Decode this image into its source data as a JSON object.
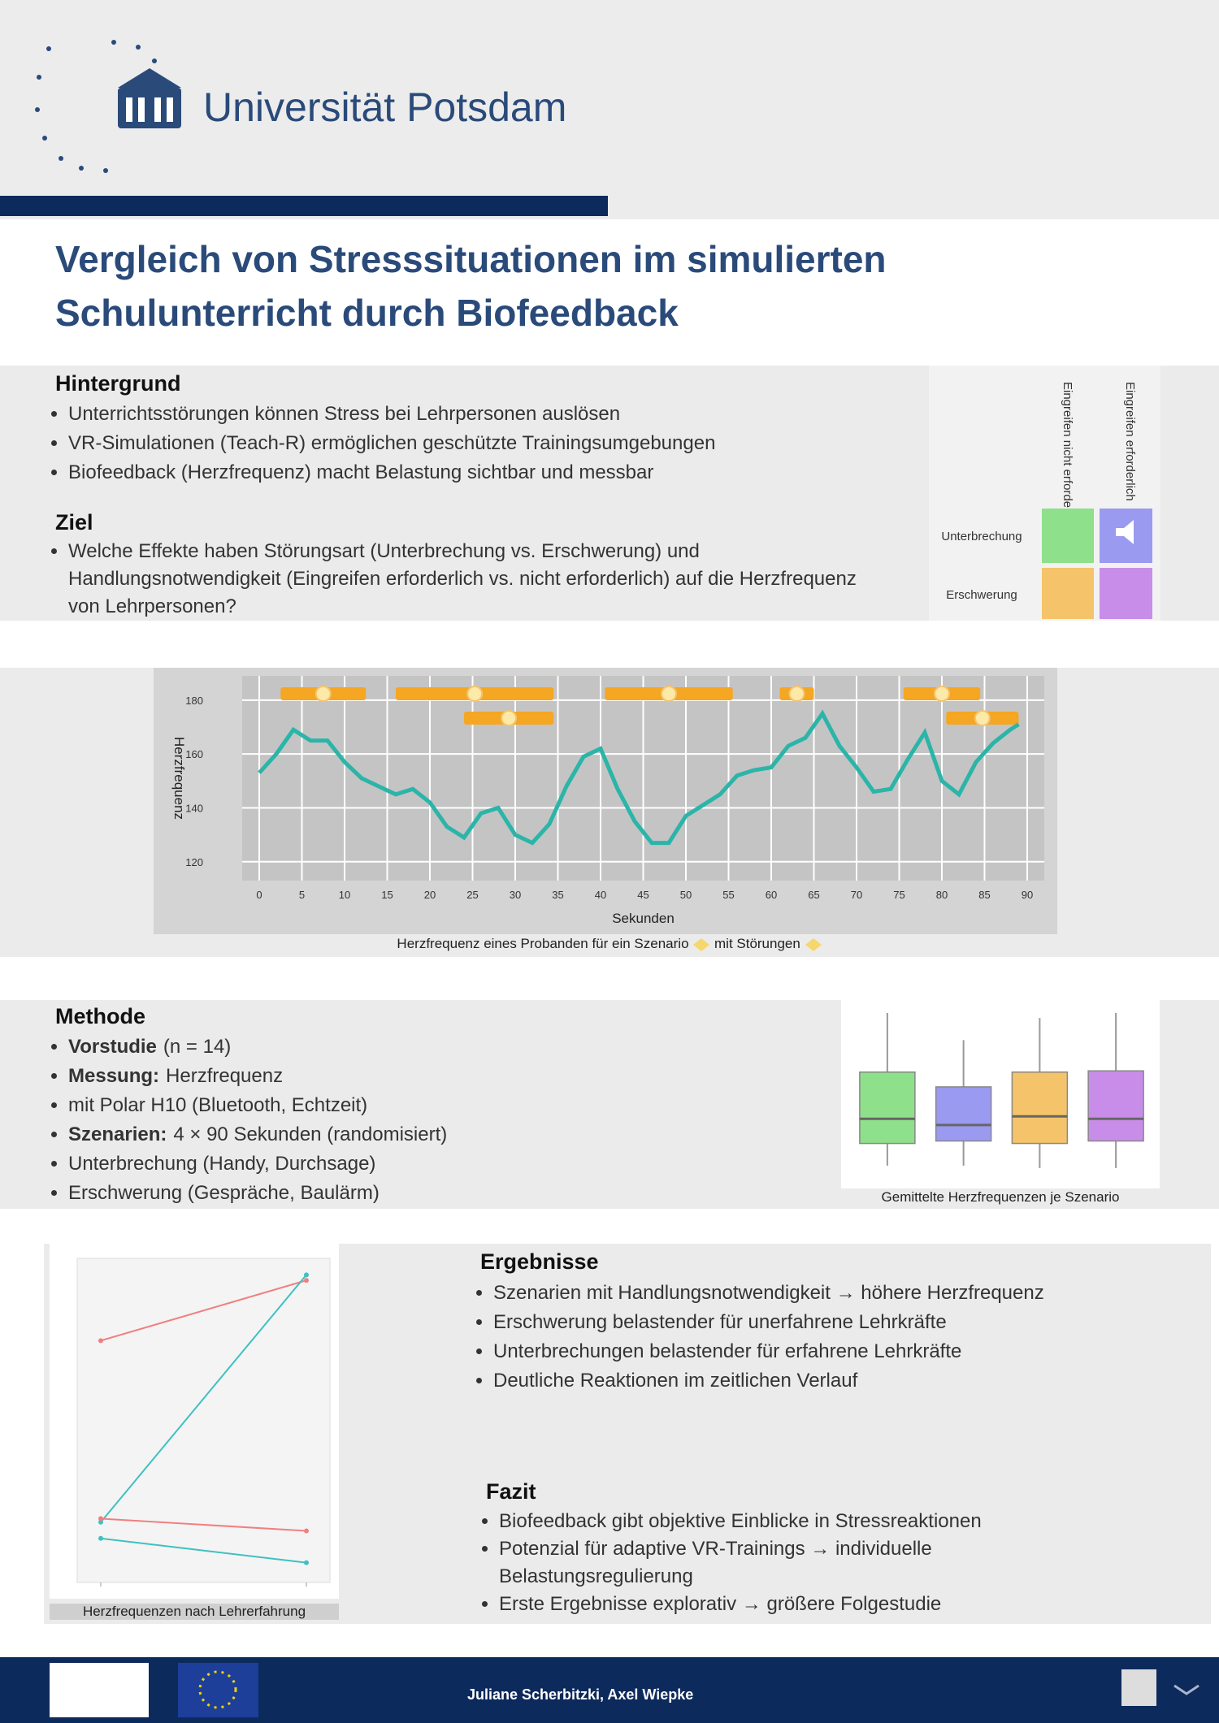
{
  "header": {
    "university": "Universität Potsdam"
  },
  "title": [
    "Vergleich von Stresssituationen im simulierten",
    "Schulunterricht durch Biofeedback"
  ],
  "background": {
    "heading": "Hintergrund",
    "bullets": [
      "Unterrichtsstörungen können Stress bei Lehrpersonen auslösen",
      "VR-Simulationen (Teach-R) ermöglichen geschützte Trainingsumgebungen",
      "Biofeedback (Herzfrequenz) macht Belastung sichtbar und messbar"
    ]
  },
  "aim": {
    "heading": "Ziel",
    "bullets": [
      "Welche Effekte haben Störungsart (Unterbrechung vs. Erschwerung) und Handlungsnotwendigkeit (Eingreifen erforderlich vs. nicht erforderlich) auf die Herzfrequenz von Lehrpersonen?"
    ]
  },
  "scenario_matrix": {
    "columns": [
      "Eingreifen nicht erforderlich",
      "Eingreifen erforderlich"
    ],
    "rows": [
      "Unterbrechung",
      "Erschwerung"
    ]
  },
  "chart_data": [
    {
      "type": "line",
      "x_label": "Sekunden",
      "y_label": "Herzfrequenz",
      "caption": "Herzfrequenz eines Probanden für ein Szenario",
      "caption_suffix": "mit Störungen",
      "x": [
        0,
        2,
        4,
        6,
        8,
        10,
        12,
        14,
        16,
        18,
        20,
        22,
        24,
        26,
        28,
        30,
        32,
        34,
        36,
        38,
        40,
        42,
        44,
        46,
        48,
        50,
        52,
        54,
        56,
        58,
        60,
        62,
        64,
        66,
        68,
        70,
        72,
        74,
        76,
        78,
        80,
        82,
        84,
        86,
        88,
        89
      ],
      "series": [
        {
          "color": "#2bb5a8",
          "values": [
            153,
            160,
            169,
            165,
            165,
            157,
            151,
            148,
            145,
            147,
            142,
            133,
            129,
            138,
            140,
            130,
            127,
            134,
            148,
            159,
            162,
            147,
            135,
            127,
            127,
            137,
            141,
            145,
            152,
            154,
            155,
            163,
            166,
            175,
            163,
            155,
            146,
            147,
            158,
            168,
            150,
            145,
            157,
            164,
            169,
            171
          ]
        }
      ],
      "disturbances": [
        {
          "start": 2.5,
          "end": 12.5
        },
        {
          "start": 16,
          "end": 34.5
        },
        {
          "start": 40.5,
          "end": 55.5
        },
        {
          "start": 61,
          "end": 65
        },
        {
          "start": 75.5,
          "end": 84.5
        }
      ],
      "disturbances_lower": [
        {
          "start": 24,
          "end": 34.5
        },
        {
          "start": 80.5,
          "end": 89
        }
      ],
      "disturbance_color": "#f5a623",
      "xlim": [
        -2,
        92
      ],
      "ylim": [
        113,
        189
      ],
      "xticks": [
        0,
        5,
        10,
        15,
        20,
        25,
        30,
        35,
        40,
        45,
        50,
        55,
        60,
        65,
        70,
        75,
        80,
        85,
        90
      ],
      "yticks": [
        120,
        140,
        160,
        180
      ],
      "grid": true
    },
    {
      "type": "box",
      "caption": "Gemittelte Herzfrequenzen je Szenario",
      "ylim": [
        60,
        130
      ],
      "boxes": [
        {
          "color": "#8fe08a",
          "min": 66,
          "q1": 75,
          "median": 85,
          "q3": 104,
          "max": 128
        },
        {
          "color": "#9a9af0",
          "min": 66,
          "q1": 76,
          "median": 82.5,
          "q3": 98,
          "max": 117
        },
        {
          "color": "#f5c46a",
          "min": 65,
          "q1": 75,
          "median": 86,
          "q3": 104,
          "max": 126
        },
        {
          "color": "#c88de8",
          "min": 65,
          "q1": 76,
          "median": 85,
          "q3": 104.5,
          "max": 128
        }
      ]
    },
    {
      "type": "line",
      "caption": "Herzfrequenzen nach Lehrerfahrung",
      "categories": [
        null,
        null
      ],
      "ylim": [
        0,
        100
      ],
      "series": [
        {
          "color": "#f08080",
          "values": [
            74.6,
            93.2
          ]
        },
        {
          "color": "#40c0c0",
          "values": [
            18.6,
            94.9
          ]
        },
        {
          "color": "#f08080",
          "values": [
            19.7,
            15.9
          ]
        },
        {
          "color": "#40c0c0",
          "values": [
            13.6,
            6.1
          ]
        }
      ]
    }
  ],
  "method": {
    "heading": "Methode",
    "items": [
      {
        "bold": "Vorstudie",
        "text": "(n = 14)"
      },
      {
        "bold": "Messung:",
        "text": "Herzfrequenz"
      },
      {
        "text": "mit Polar H10 (Bluetooth, Echtzeit)"
      },
      {
        "bold": "Szenarien:",
        "text": "4 × 90 Sekunden (randomisiert)"
      },
      {
        "text": "Unterbrechung (Handy, Durchsage)"
      },
      {
        "text": "Erschwerung (Gespräche, Baulärm)"
      }
    ]
  },
  "results": {
    "heading": "Ergebnisse",
    "bullets": [
      "Szenarien mit Handlungsnotwendigkeit → höhere Herzfrequenz",
      "Erschwerung belastender für unerfahrene Lehrkräfte",
      "Unterbrechungen belastender für erfahrene Lehrkräfte",
      "Deutliche Reaktionen im zeitlichen Verlauf"
    ]
  },
  "conclusion": {
    "heading": "Fazit",
    "bullets": [
      "Biofeedback gibt objektive Einblicke in Stressreaktionen",
      "Potenzial für adaptive VR-Trainings → individuelle Belastungsregulierung",
      "Erste Ergebnisse explorativ → größere Folgestudie"
    ]
  },
  "footer": {
    "authors": "Juliane Scherbitzki, Axel Wiepke"
  }
}
